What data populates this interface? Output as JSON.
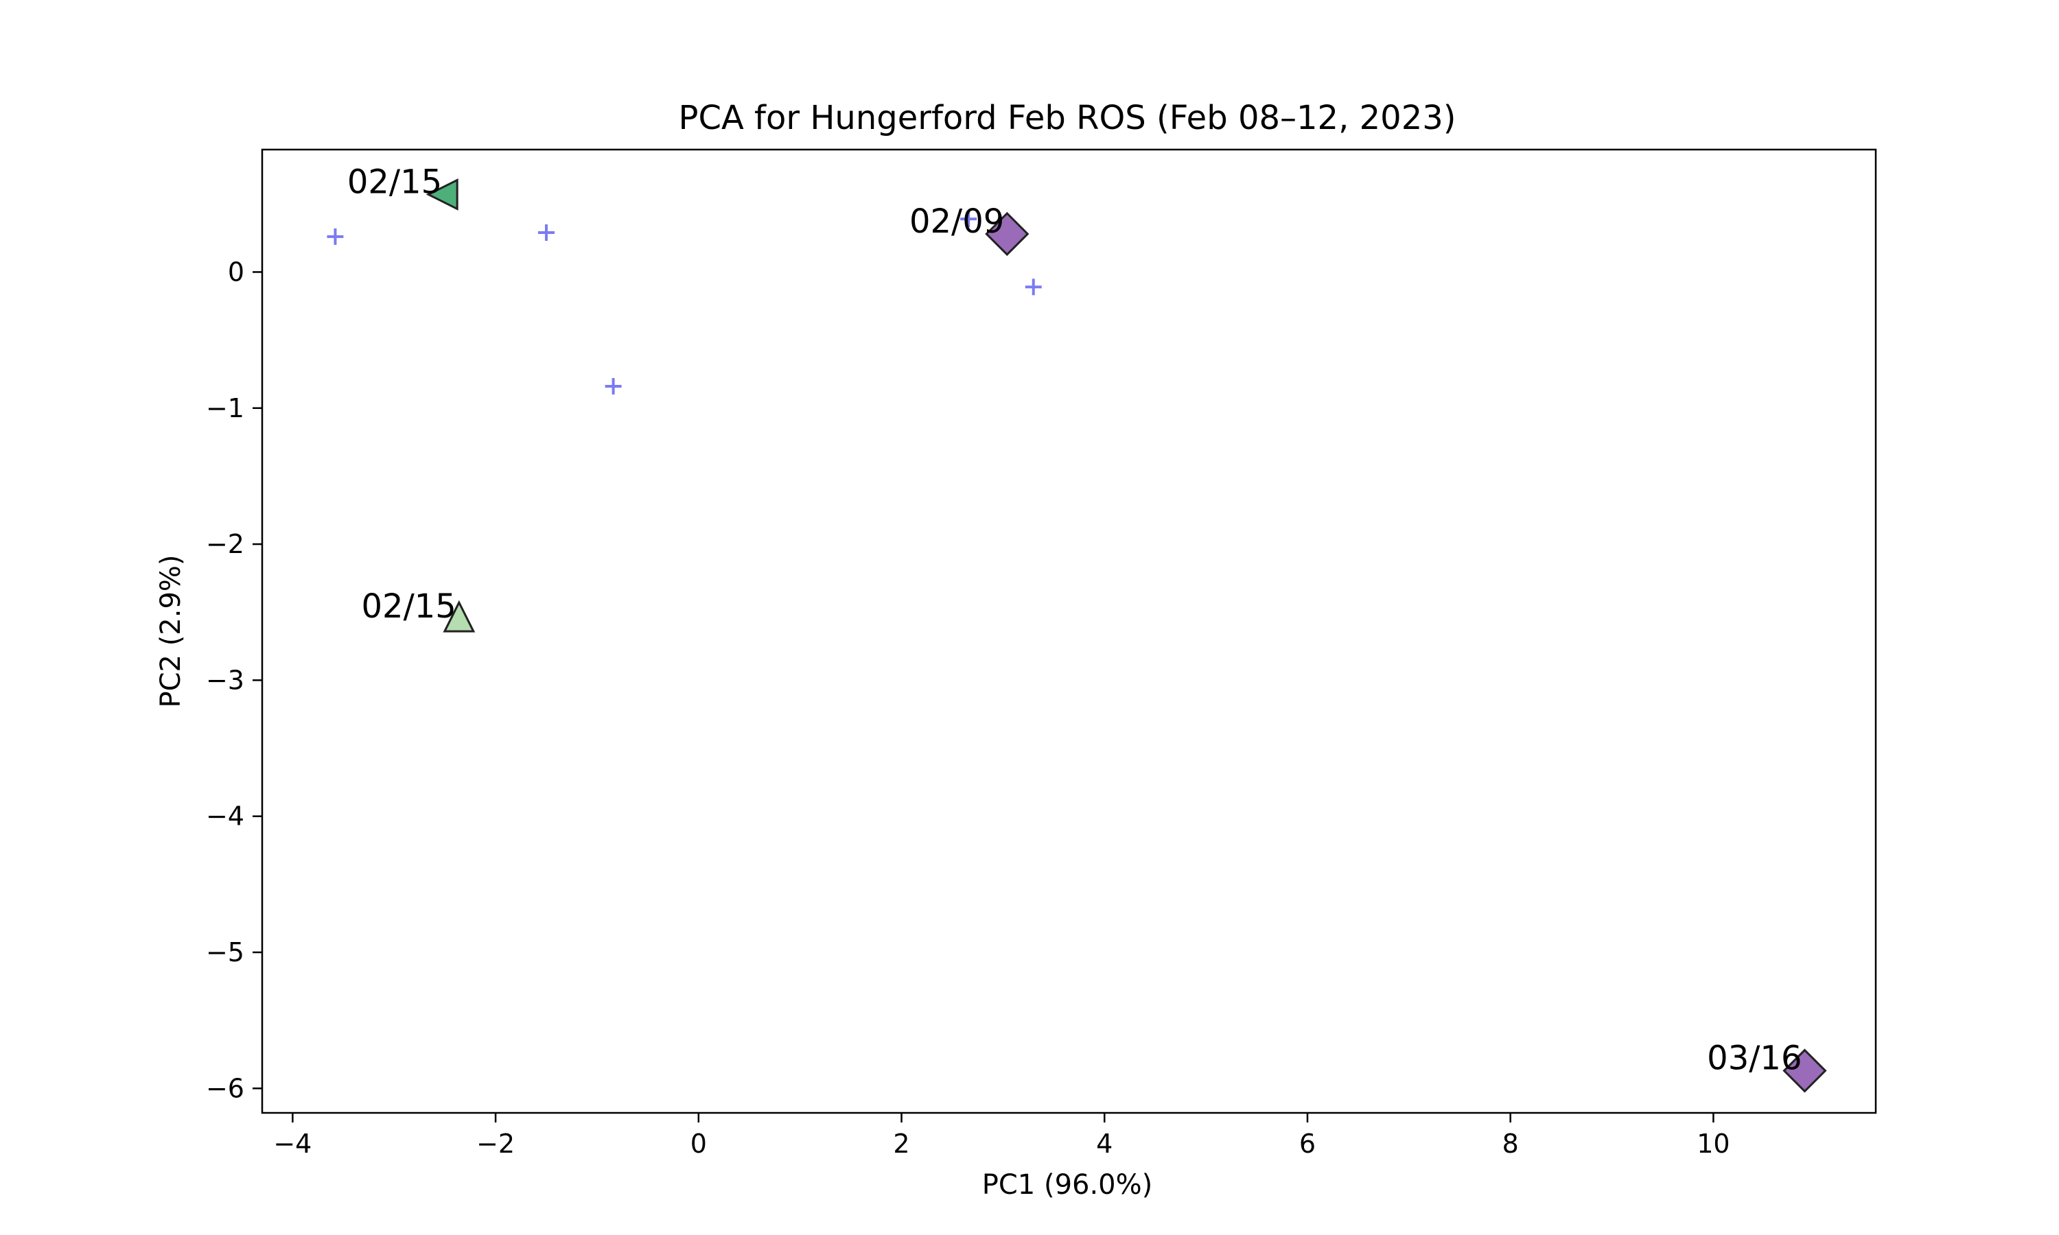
{
  "chart_data": {
    "type": "scatter",
    "title": "PCA for Hungerford Feb ROS (Feb 08–12, 2023)",
    "xlabel": "PC1 (96.0%)",
    "ylabel": "PC2 (2.9%)",
    "xlim": [
      -4.3,
      11.6
    ],
    "ylim": [
      -6.18,
      0.9
    ],
    "xticks": [
      -4,
      -2,
      0,
      2,
      4,
      6,
      8,
      10
    ],
    "yticks": [
      0,
      -1,
      -2,
      -3,
      -4,
      -5,
      -6
    ],
    "grid": false,
    "background_points": {
      "marker": "plus",
      "color": "#7b7bf2",
      "points": [
        {
          "x": -3.58,
          "y": 0.26
        },
        {
          "x": -1.5,
          "y": 0.29
        },
        {
          "x": -0.84,
          "y": -0.84
        },
        {
          "x": 2.66,
          "y": 0.39
        },
        {
          "x": 3.3,
          "y": -0.11
        }
      ]
    },
    "highlighted_points": [
      {
        "label": "02/15",
        "x": -2.5,
        "y": 0.57,
        "marker": "triangle-left",
        "color": "#4daf7a"
      },
      {
        "label": "02/09",
        "x": 3.04,
        "y": 0.28,
        "marker": "diamond",
        "color": "#9a6bb8"
      },
      {
        "label": "02/15",
        "x": -2.36,
        "y": -2.55,
        "marker": "triangle-up",
        "color": "#b4ddb0"
      },
      {
        "label": "03/16",
        "x": 10.9,
        "y": -5.87,
        "marker": "diamond",
        "color": "#9a6bb8"
      }
    ]
  }
}
